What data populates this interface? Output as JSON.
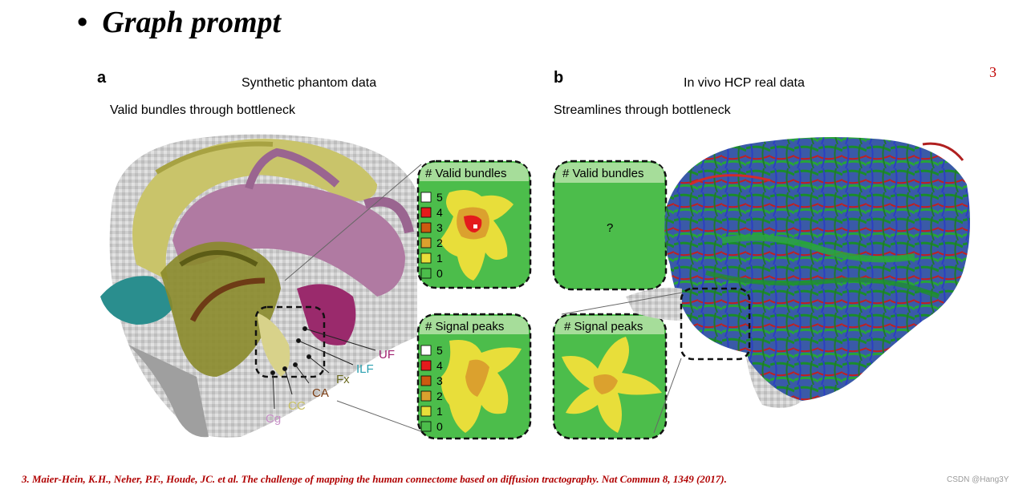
{
  "slide": {
    "bullet": "•",
    "title": "Graph prompt",
    "page_number": "3",
    "citation": "3. Maier-Hein, K.H., Neher, P.F., Houde, JC. et al. The challenge of mapping the human connectome based on diffusion tractography. Nat Commun 8, 1349 (2017).",
    "watermark": "CSDN @Hang3Y"
  },
  "panel_a": {
    "letter": "a",
    "title": "Synthetic phantom data",
    "subtitle": "Valid bundles through bottleneck",
    "tract_labels": [
      "UF",
      "ILF",
      "Fx",
      "CA",
      "CC",
      "Cg"
    ],
    "top_inset": {
      "title": "# Valid bundles",
      "legend": [
        "5",
        "4",
        "3",
        "2",
        "1",
        "0"
      ]
    },
    "bottom_inset": {
      "title": "# Signal peaks",
      "legend": [
        "5",
        "4",
        "3",
        "2",
        "1",
        "0"
      ]
    }
  },
  "panel_b": {
    "letter": "b",
    "title": "In vivo HCP real data",
    "subtitle": "Streamlines through bottleneck",
    "top_inset": {
      "title": "# Valid bundles",
      "placeholder": "?"
    },
    "bottom_inset": {
      "title": "# Signal peaks"
    }
  },
  "colors": {
    "inset_green": "#4cbd4b",
    "header_green": "#a6dd9a",
    "legend": [
      "#ffffff",
      "#e41a1c",
      "#cc5a10",
      "#dba12e",
      "#e8de3a",
      "#4cbd4b"
    ],
    "uf": "#a0206f",
    "ilf": "#2aa0b0",
    "fx": "#6b6a20",
    "ca": "#7a3c12",
    "cc": "#c8c060",
    "cg": "#c890c8"
  }
}
